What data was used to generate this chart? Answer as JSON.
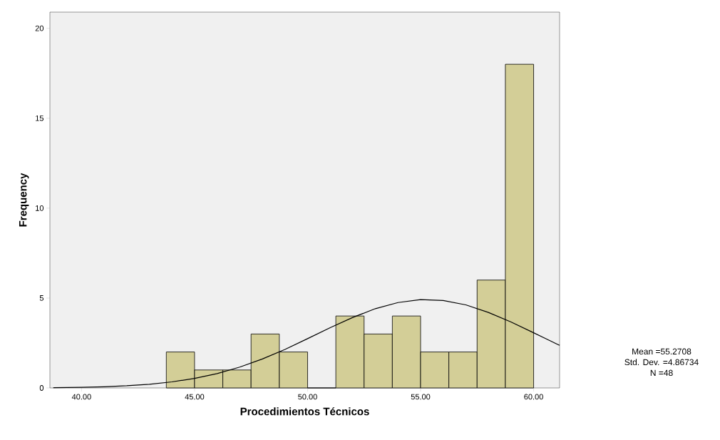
{
  "chart_data": {
    "type": "histogram",
    "xlabel": "Procedimientos Técnicos",
    "ylabel": "Frequency",
    "bins": [
      43.75,
      45,
      46.25,
      47.5,
      48.75,
      50,
      51.25,
      52.5,
      53.75,
      55,
      56.25,
      57.5,
      58.75,
      60
    ],
    "values": [
      2,
      1,
      1,
      3,
      2,
      0,
      4,
      3,
      4,
      2,
      2,
      6,
      18
    ],
    "color": "#d3ce97",
    "series": [
      {
        "type": "line",
        "color": "#000000",
        "x": [
          38.75,
          40,
          41,
          42,
          43,
          44,
          45,
          46,
          47,
          48,
          49,
          50,
          51,
          52,
          53,
          54,
          55,
          56,
          57,
          58,
          59,
          60,
          61,
          61.15
        ],
        "values": [
          0.015,
          0.036,
          0.067,
          0.12,
          0.205,
          0.337,
          0.531,
          0.8,
          1.16,
          1.61,
          2.14,
          2.74,
          3.35,
          3.92,
          4.41,
          4.75,
          4.91,
          4.86,
          4.62,
          4.2,
          3.67,
          3.07,
          2.46,
          2.37
        ]
      }
    ],
    "xlim": [
      38.6,
      61.15
    ],
    "ylim": [
      0,
      20.9
    ],
    "xticks": [
      {
        "value": 40,
        "label": "40.00"
      },
      {
        "value": 45,
        "label": "45.00"
      },
      {
        "value": 50,
        "label": "50.00"
      },
      {
        "value": 55,
        "label": "55.00"
      },
      {
        "value": 60,
        "label": "60.00"
      }
    ],
    "yticks": [
      0,
      5,
      10,
      15,
      20
    ],
    "grid": false,
    "annotations": [
      "Mean =55.2708",
      "Std. Dev. =4.86734",
      "N =48"
    ]
  }
}
